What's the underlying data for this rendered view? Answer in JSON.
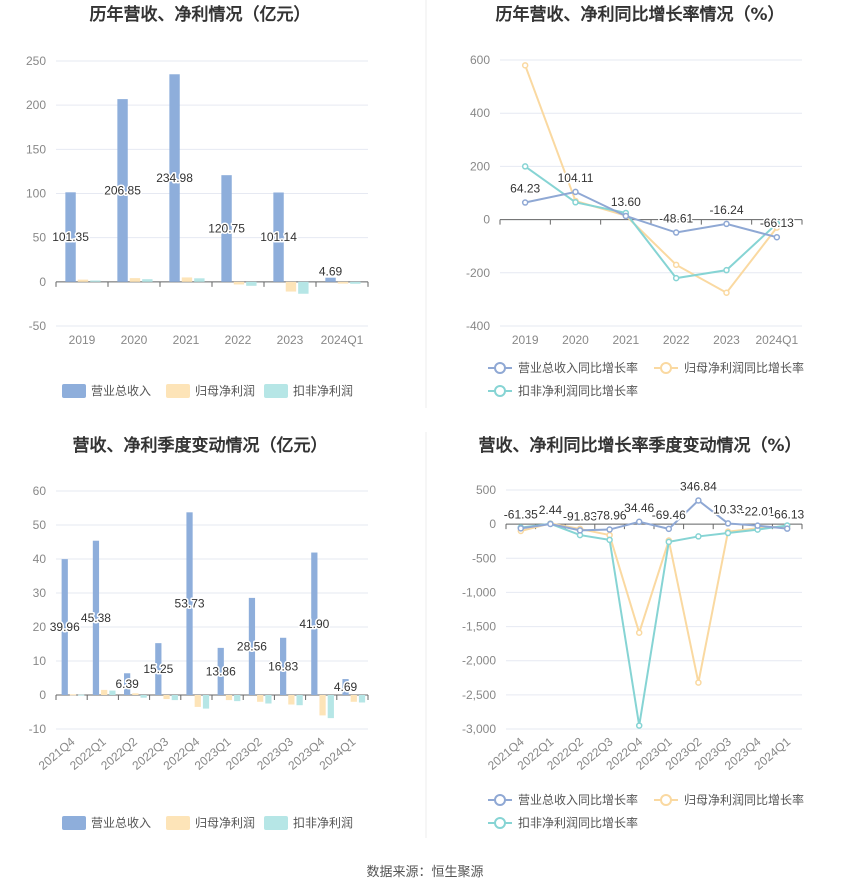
{
  "source": "数据来源：恒生聚源",
  "colors": {
    "revenue": "#8eaedb",
    "netprofit": "#fde4b8",
    "deducted": "#b6e6e6",
    "revenue_line": "#8fa8d4",
    "netprofit_line": "#fad9a1",
    "deducted_line": "#86d4d4",
    "grid": "#e6e9f2",
    "axis": "#666666"
  },
  "chart_data": [
    {
      "type": "bar",
      "title": "历年营收、净利情况（亿元）",
      "categories": [
        "2019",
        "2020",
        "2021",
        "2022",
        "2023",
        "2024Q1"
      ],
      "ylim": [
        -50,
        250
      ],
      "yticks": [
        250,
        200,
        150,
        100,
        50,
        0,
        -50
      ],
      "ytick_labels": [
        "250",
        "200",
        "150",
        "100",
        "50",
        "0",
        "-50"
      ],
      "series": [
        {
          "name": "营业总收入",
          "values": [
            101.35,
            206.85,
            234.98,
            120.75,
            101.14,
            4.69
          ],
          "labels": [
            "101.35",
            "206.85",
            "234.98",
            "120.75",
            "101.14",
            "4.69"
          ]
        },
        {
          "name": "归母净利润",
          "values": [
            2.5,
            4.2,
            5.0,
            -3.0,
            -11.0,
            -2.0
          ]
        },
        {
          "name": "扣非净利润",
          "values": [
            1.5,
            3.0,
            4.0,
            -4.5,
            -13.5,
            -2.2
          ]
        }
      ],
      "legend": "bottom"
    },
    {
      "type": "line",
      "title": "历年营收、净利同比增长率情况（%）",
      "categories": [
        "2019",
        "2020",
        "2021",
        "2022",
        "2023",
        "2024Q1"
      ],
      "ylim": [
        -400,
        600
      ],
      "yticks": [
        600,
        400,
        200,
        0,
        -200,
        -400
      ],
      "ytick_labels": [
        "600",
        "400",
        "200",
        "0",
        "-200",
        "-400"
      ],
      "series": [
        {
          "name": "营业总收入同比增长率",
          "values": [
            64.23,
            104.11,
            13.6,
            -48.61,
            -16.24,
            -66.13
          ],
          "labels": [
            "64.23",
            "104.11",
            "13.60",
            "-48.61",
            "-16.24",
            "-66.13"
          ]
        },
        {
          "name": "归母净利润同比增长率",
          "values": [
            580,
            70,
            15,
            -170,
            -275,
            -30
          ]
        },
        {
          "name": "扣非净利润同比增长率",
          "values": [
            200,
            65,
            25,
            -220,
            -190,
            -15
          ]
        }
      ],
      "legend": "bottom"
    },
    {
      "type": "bar",
      "title": "营收、净利季度变动情况（亿元）",
      "categories": [
        "2021Q4",
        "2022Q1",
        "2022Q2",
        "2022Q3",
        "2022Q4",
        "2023Q1",
        "2023Q2",
        "2023Q3",
        "2023Q4",
        "2024Q1"
      ],
      "ylim": [
        -10,
        60
      ],
      "yticks": [
        60,
        50,
        40,
        30,
        20,
        10,
        0,
        -10
      ],
      "ytick_labels": [
        "60",
        "50",
        "40",
        "30",
        "20",
        "10",
        "0",
        "-10"
      ],
      "series": [
        {
          "name": "营业总收入",
          "values": [
            39.96,
            45.38,
            6.39,
            15.25,
            53.73,
            13.86,
            28.56,
            16.83,
            41.9,
            4.69
          ],
          "labels": [
            "39.96",
            "45.38",
            "6.39",
            "15.25",
            "53.73",
            "13.86",
            "28.56",
            "16.83",
            "41.90",
            "4.69"
          ]
        },
        {
          "name": "归母净利润",
          "values": [
            0.2,
            1.5,
            0.5,
            -1.2,
            -3.5,
            -1.5,
            -2.0,
            -2.8,
            -6.0,
            -2.0
          ]
        },
        {
          "name": "扣非净利润",
          "values": [
            0.1,
            1.3,
            -0.8,
            -1.5,
            -4.0,
            -1.8,
            -2.5,
            -3.0,
            -6.8,
            -2.2
          ]
        }
      ],
      "legend": "bottom"
    },
    {
      "type": "line",
      "title": "营收、净利同比增长率季度变动情况（%）",
      "categories": [
        "2021Q4",
        "2022Q1",
        "2022Q2",
        "2022Q3",
        "2022Q4",
        "2023Q1",
        "2023Q2",
        "2023Q3",
        "2023Q4",
        "2024Q1"
      ],
      "ylim": [
        -3000,
        500
      ],
      "yticks": [
        500,
        0,
        -500,
        -1000,
        -1500,
        -2000,
        -2500,
        -3000
      ],
      "ytick_labels": [
        "500",
        "0",
        "-500",
        "-1,000",
        "-1,500",
        "-2,000",
        "-2,500",
        "-3,000"
      ],
      "series": [
        {
          "name": "营业总收入同比增长率",
          "values": [
            -61.35,
            2.44,
            -91.83,
            -78.96,
            34.46,
            -69.46,
            346.84,
            10.33,
            -22.01,
            -66.13
          ],
          "labels": [
            "-61.35",
            "2.44",
            "-91.83",
            "-78.96",
            "34.46",
            "-69.46",
            "346.84",
            "10.33",
            "-22.01",
            "-66.13"
          ]
        },
        {
          "name": "归母净利润同比增长率",
          "values": [
            -100,
            10,
            -70,
            -160,
            -1590,
            -240,
            -2320,
            -110,
            -60,
            -30
          ]
        },
        {
          "name": "扣非净利润同比增长率",
          "values": [
            -50,
            5,
            -160,
            -230,
            -2950,
            -260,
            -180,
            -130,
            -80,
            -20
          ]
        }
      ],
      "legend": "bottom"
    }
  ]
}
